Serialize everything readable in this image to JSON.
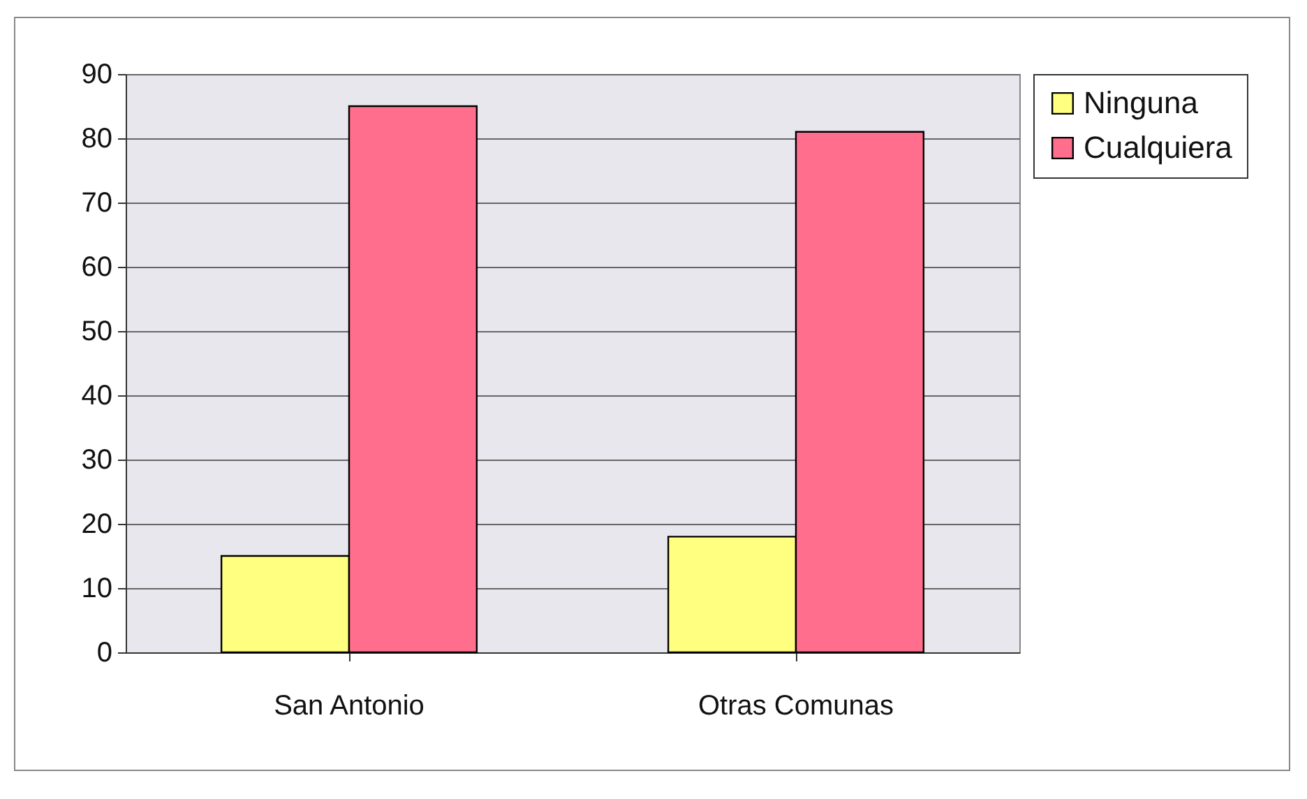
{
  "chart_data": {
    "type": "bar",
    "categories": [
      "San Antonio",
      "Otras Comunas"
    ],
    "series": [
      {
        "name": "Ninguna",
        "color": "#ffff80",
        "values": [
          15,
          18
        ]
      },
      {
        "name": "Cualquiera",
        "color": "#ff6e8c",
        "values": [
          85,
          81
        ]
      }
    ],
    "ylim": [
      0,
      90
    ],
    "yticks": [
      0,
      10,
      20,
      30,
      40,
      50,
      60,
      70,
      80,
      90
    ],
    "grid": "y",
    "legend": "right"
  }
}
